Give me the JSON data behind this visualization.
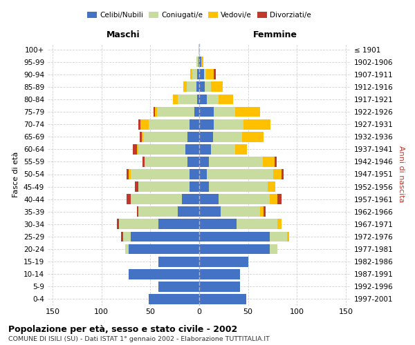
{
  "age_groups": [
    "0-4",
    "5-9",
    "10-14",
    "15-19",
    "20-24",
    "25-29",
    "30-34",
    "35-39",
    "40-44",
    "45-49",
    "50-54",
    "55-59",
    "60-64",
    "65-69",
    "70-74",
    "75-79",
    "80-84",
    "85-89",
    "90-94",
    "95-99",
    "100+"
  ],
  "birth_years": [
    "1997-2001",
    "1992-1996",
    "1987-1991",
    "1982-1986",
    "1977-1981",
    "1972-1976",
    "1967-1971",
    "1962-1966",
    "1957-1961",
    "1952-1956",
    "1947-1951",
    "1942-1946",
    "1937-1941",
    "1932-1936",
    "1927-1931",
    "1922-1926",
    "1917-1921",
    "1912-1916",
    "1907-1911",
    "1902-1906",
    "≤ 1901"
  ],
  "male_celibe": [
    52,
    42,
    72,
    42,
    72,
    70,
    42,
    22,
    18,
    10,
    10,
    12,
    14,
    12,
    10,
    5,
    2,
    3,
    2,
    1,
    0
  ],
  "male_coniugato": [
    0,
    0,
    0,
    0,
    4,
    8,
    40,
    40,
    52,
    52,
    60,
    44,
    48,
    45,
    42,
    38,
    20,
    10,
    5,
    2,
    1
  ],
  "male_vedovo": [
    0,
    0,
    0,
    0,
    0,
    0,
    0,
    0,
    0,
    0,
    2,
    0,
    2,
    2,
    8,
    2,
    5,
    3,
    2,
    0,
    0
  ],
  "male_divorziato": [
    0,
    0,
    0,
    0,
    0,
    2,
    2,
    2,
    4,
    4,
    2,
    2,
    4,
    2,
    2,
    2,
    0,
    0,
    0,
    0,
    0
  ],
  "female_celibe": [
    48,
    42,
    42,
    50,
    72,
    72,
    38,
    22,
    20,
    10,
    8,
    10,
    12,
    14,
    15,
    15,
    8,
    6,
    5,
    2,
    0
  ],
  "female_coniugato": [
    0,
    0,
    0,
    0,
    8,
    18,
    42,
    40,
    52,
    60,
    68,
    55,
    25,
    30,
    30,
    22,
    12,
    6,
    2,
    0,
    0
  ],
  "female_vedovo": [
    0,
    0,
    0,
    0,
    0,
    2,
    4,
    4,
    8,
    8,
    8,
    12,
    12,
    22,
    28,
    25,
    15,
    12,
    8,
    2,
    0
  ],
  "female_divorziato": [
    0,
    0,
    0,
    0,
    0,
    0,
    0,
    2,
    4,
    0,
    2,
    2,
    0,
    0,
    0,
    0,
    0,
    0,
    2,
    0,
    0
  ],
  "color_celibe": "#4472c4",
  "color_coniugato": "#c8dca0",
  "color_vedovo": "#ffc000",
  "color_divorziato": "#c0392b",
  "title": "Popolazione per età, sesso e stato civile - 2002",
  "subtitle": "COMUNE DI ISILI (SU) - Dati ISTAT 1° gennaio 2002 - Elaborazione TUTTITALIA.IT",
  "xlabel_left": "Maschi",
  "xlabel_right": "Femmine",
  "ylabel_left": "Fasce di età",
  "ylabel_right": "Anni di nascita",
  "xlim": 155,
  "grid_color": "#cccccc",
  "bar_height": 0.82
}
